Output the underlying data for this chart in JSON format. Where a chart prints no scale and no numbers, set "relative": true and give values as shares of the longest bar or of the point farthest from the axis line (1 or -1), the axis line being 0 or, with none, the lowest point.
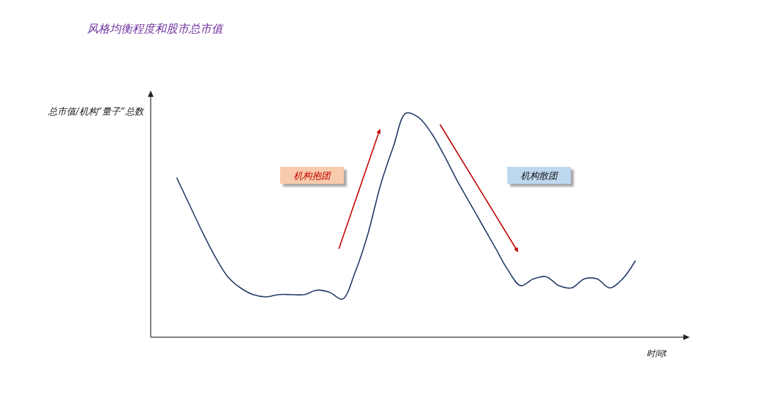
{
  "chart_data": {
    "type": "line",
    "title": "风格均衡程度和股市总市值",
    "xlabel": "时间t",
    "ylabel": "总市值/机构“量子”总数",
    "annotations": [
      "机构抱团",
      "机构散团"
    ],
    "relative": true,
    "categories": [
      null,
      null,
      null,
      null,
      null,
      null,
      null,
      null,
      null,
      null,
      null,
      null,
      null,
      null,
      null,
      null,
      null,
      null,
      null,
      null,
      null,
      null,
      null,
      null,
      null,
      null,
      null,
      null,
      null,
      null,
      null,
      null,
      null,
      null,
      null,
      null,
      null
    ],
    "series": [
      {
        "color": "#203864",
        "values": [
          0.71,
          0.59,
          0.47,
          0.36,
          0.27,
          0.22,
          0.19,
          0.18,
          0.19,
          0.19,
          0.19,
          0.21,
          0.2,
          0.17,
          0.29,
          0.46,
          0.68,
          0.85,
          1.0,
          0.98,
          0.91,
          0.81,
          0.7,
          0.6,
          0.5,
          0.4,
          0.3,
          0.23,
          0.26,
          0.27,
          0.23,
          0.22,
          0.26,
          0.26,
          0.22,
          0.26,
          0.34
        ]
      }
    ]
  }
}
